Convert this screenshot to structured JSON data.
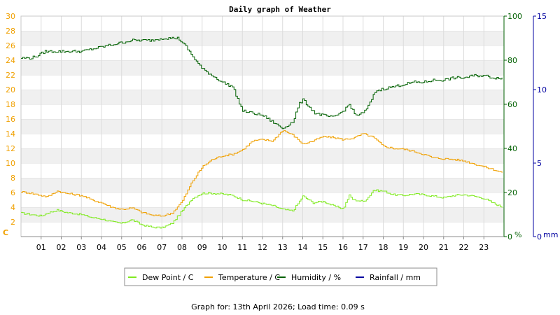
{
  "chart_data": {
    "type": "line",
    "title": "Daily graph of Weather",
    "footer": "Graph for: 13th April 2026; Load time: 0.09 s",
    "x_ticks": [
      "01",
      "02",
      "03",
      "04",
      "05",
      "06",
      "07",
      "08",
      "09",
      "10",
      "11",
      "12",
      "13",
      "14",
      "15",
      "16",
      "17",
      "18",
      "19",
      "20",
      "21",
      "22",
      "23"
    ],
    "x_range": [
      0,
      24
    ],
    "axes": {
      "left": {
        "unit": "C",
        "min": 0,
        "max": 30,
        "ticks": [
          "0",
          "2",
          "4",
          "6",
          "8",
          "10",
          "12",
          "14",
          "16",
          "18",
          "20",
          "22",
          "24",
          "26",
          "28",
          "30"
        ],
        "color": "#f0a000"
      },
      "right1": {
        "unit": "%",
        "min": 0,
        "max": 100,
        "ticks": [
          "0",
          "20",
          "40",
          "60",
          "80",
          "100"
        ],
        "color": "#006000"
      },
      "right2": {
        "unit": "mm",
        "min": 0,
        "max": 15,
        "ticks": [
          "0",
          "5",
          "10",
          "15"
        ],
        "color": "#0000a0"
      }
    },
    "grid": true,
    "legend_position": "bottom",
    "series": [
      {
        "name": "Dew Point / C",
        "axis": "left",
        "color": "#80ea20",
        "x": [
          0,
          0.5,
          1,
          1.3,
          1.8,
          2.2,
          3,
          3.5,
          4,
          4.5,
          5,
          5.5,
          6,
          6.5,
          7,
          7.5,
          8,
          8.5,
          9,
          9.5,
          10,
          10.5,
          11,
          11.5,
          12,
          12.5,
          13,
          13.5,
          14,
          14.5,
          15,
          15.5,
          16,
          16.3,
          16.5,
          17,
          17.2,
          17.5,
          18,
          18.5,
          19,
          19.5,
          20,
          20.5,
          21,
          21.5,
          22,
          22.5,
          23,
          23.5,
          23.9
        ],
        "y": [
          3.2,
          3.0,
          2.8,
          3.2,
          3.6,
          3.3,
          3.0,
          2.6,
          2.4,
          2.0,
          1.8,
          2.3,
          1.6,
          1.3,
          1.2,
          1.8,
          3.5,
          5.2,
          5.9,
          5.9,
          5.8,
          5.6,
          5.0,
          4.8,
          4.5,
          4.2,
          3.7,
          3.5,
          5.5,
          4.6,
          4.8,
          4.2,
          3.8,
          5.6,
          5.0,
          4.8,
          5.2,
          6.3,
          6.2,
          5.7,
          5.6,
          5.8,
          5.7,
          5.5,
          5.3,
          5.6,
          5.7,
          5.5,
          5.2,
          4.5,
          4.0
        ]
      },
      {
        "name": "Temperature / C",
        "axis": "left",
        "color": "#f0a000",
        "x": [
          0,
          0.5,
          1,
          1.3,
          1.8,
          2.2,
          3,
          3.5,
          4,
          4.5,
          5,
          5.5,
          6,
          6.5,
          7,
          7.5,
          8,
          8.5,
          9,
          9.5,
          10,
          10.5,
          11,
          11.5,
          12,
          12.5,
          13,
          13.5,
          14,
          14.5,
          15,
          15.5,
          16,
          16.5,
          17,
          17.5,
          18,
          18.5,
          19,
          19.5,
          20,
          20.5,
          21,
          21.5,
          22,
          22.5,
          23,
          23.5,
          23.9
        ],
        "y": [
          6.1,
          5.9,
          5.6,
          5.4,
          6.2,
          5.9,
          5.6,
          5.0,
          4.6,
          4.0,
          3.7,
          3.9,
          3.3,
          2.9,
          2.8,
          3.2,
          4.8,
          7.5,
          9.5,
          10.5,
          11.0,
          11.2,
          11.8,
          13.0,
          13.2,
          13.0,
          14.5,
          13.8,
          12.6,
          13.0,
          13.6,
          13.5,
          13.2,
          13.4,
          14.0,
          13.5,
          12.3,
          12.0,
          11.9,
          11.6,
          11.2,
          10.7,
          10.6,
          10.5,
          10.3,
          9.9,
          9.5,
          9.1,
          8.7
        ]
      },
      {
        "name": "Humidity / %",
        "axis": "right1",
        "color": "#006000",
        "x": [
          0,
          0.5,
          0.8,
          1.2,
          1.5,
          2.0,
          2.5,
          3.0,
          3.5,
          4.0,
          4.5,
          5.0,
          5.5,
          6.0,
          6.5,
          7.0,
          7.5,
          7.8,
          8.0,
          8.2,
          8.5,
          9.0,
          9.5,
          10.0,
          10.5,
          11.0,
          11.5,
          12.0,
          12.5,
          13.0,
          13.3,
          13.5,
          13.8,
          14.0,
          14.3,
          14.6,
          15.0,
          15.5,
          16.0,
          16.3,
          16.6,
          17.0,
          17.3,
          17.6,
          18.0,
          18.5,
          19.0,
          19.5,
          20.0,
          20.5,
          21.0,
          21.5,
          22.0,
          22.5,
          23.0,
          23.5,
          23.9
        ],
        "y": [
          81,
          81,
          82,
          84,
          84,
          84,
          84,
          84,
          85,
          86,
          87,
          88,
          89,
          89,
          89,
          90,
          90,
          90,
          88,
          86,
          82,
          76,
          73,
          70,
          68,
          57,
          56,
          55,
          52,
          49,
          51,
          52,
          60,
          62,
          59,
          56,
          55,
          54,
          57,
          60,
          55,
          56,
          60,
          66,
          67,
          68,
          69,
          70,
          70,
          71,
          71,
          72,
          72,
          73,
          73,
          72,
          72
        ]
      },
      {
        "name": "Rainfall / mm",
        "axis": "right2",
        "color": "#0000a0",
        "x": [
          0,
          23.9
        ],
        "y": [
          0,
          0
        ]
      }
    ]
  }
}
